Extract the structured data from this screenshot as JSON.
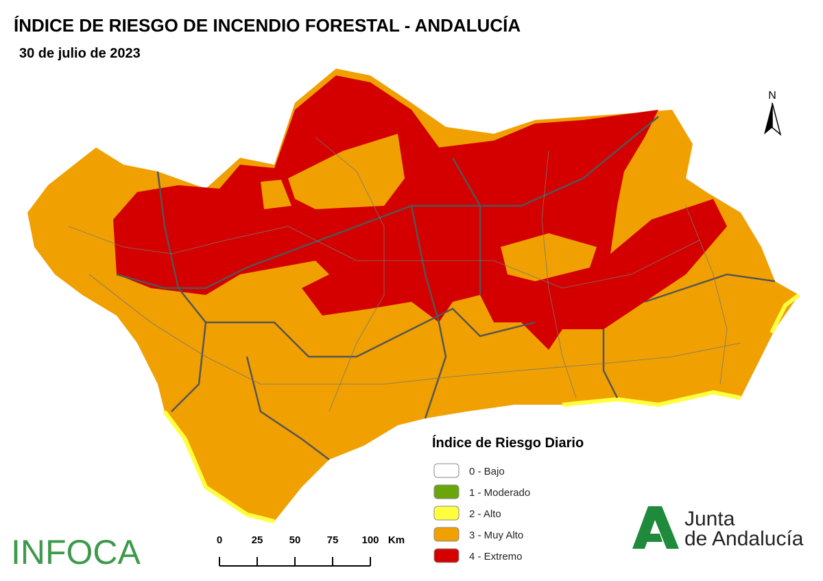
{
  "header": {
    "title": "ÍNDICE DE RIESGO DE INCENDIO FORESTAL - ANDALUCÍA",
    "subtitle": "30 de julio de 2023"
  },
  "north": "N",
  "legend": {
    "title": "Índice de Riesgo Diario",
    "items": [
      {
        "label": "0 - Bajo",
        "color": "#ffffff"
      },
      {
        "label": "1 - Moderado",
        "color": "#6aa50a"
      },
      {
        "label": "2 - Alto",
        "color": "#ffff40"
      },
      {
        "label": "3 - Muy Alto",
        "color": "#f0a000"
      },
      {
        "label": "4 - Extremo",
        "color": "#d40000"
      }
    ]
  },
  "scale_bar": {
    "ticks": [
      0,
      25,
      50,
      75,
      100
    ],
    "unit": "Km"
  },
  "logos": {
    "left": "INFOCA",
    "right_line1": "Junta",
    "right_line2": "de Andalucía"
  }
}
